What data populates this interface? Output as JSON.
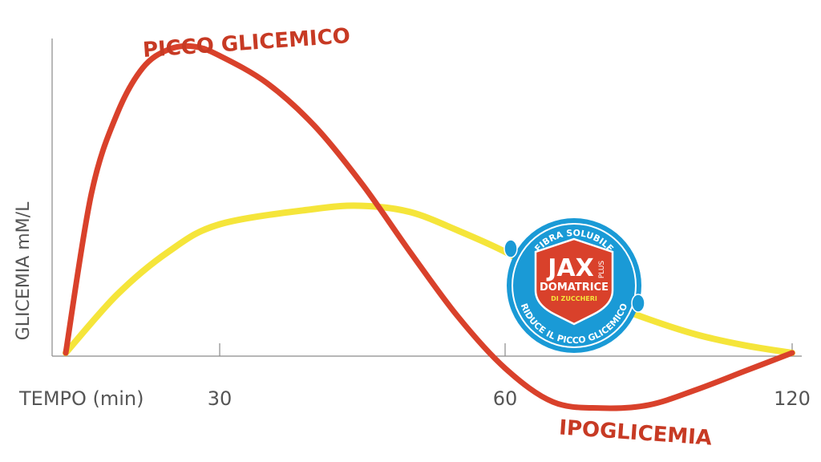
{
  "chart_data": {
    "type": "line",
    "xlabel": "TEMPO (min)",
    "ylabel": "GLICEMIA mM/L",
    "x_ticks": [
      "30",
      "60",
      "120"
    ],
    "series": [
      {
        "color": "#d9412b",
        "x": [
          0,
          5,
          10,
          15,
          20,
          25,
          30,
          35,
          40,
          45,
          50,
          55,
          60,
          70,
          80,
          90,
          100,
          110,
          120
        ],
        "y": [
          0,
          5.2,
          7.8,
          9.3,
          9.9,
          10,
          9.7,
          8.8,
          7.4,
          5.5,
          3.3,
          1.2,
          -0.5,
          -1.6,
          -1.8,
          -1.7,
          -1.2,
          -0.6,
          0
        ]
      },
      {
        "color": "#f5e53a",
        "x": [
          0,
          10,
          20,
          30,
          40,
          45,
          50,
          55,
          60,
          70,
          80,
          90,
          100,
          110,
          120
        ],
        "y": [
          0,
          1.9,
          3.3,
          4.2,
          4.7,
          4.8,
          4.6,
          4.0,
          3.3,
          2.4,
          1.7,
          1.1,
          0.6,
          0.25,
          0
        ]
      }
    ],
    "annotations": {
      "peak": "PICCO GLICEMICO",
      "hypo": "IPOGLICEMIA"
    },
    "grid": false
  },
  "badge": {
    "top_text": "FIBRA SOLUBILE",
    "brand": "JAX",
    "brand_suffix": "PLUS",
    "line1": "DOMATRICE",
    "line2": "DI ZUCCHERI",
    "bottom_text": "RIDUCE IL PICCO GLICEMICO",
    "ring_color": "#1a9ad6",
    "shield_color": "#d9412b"
  }
}
